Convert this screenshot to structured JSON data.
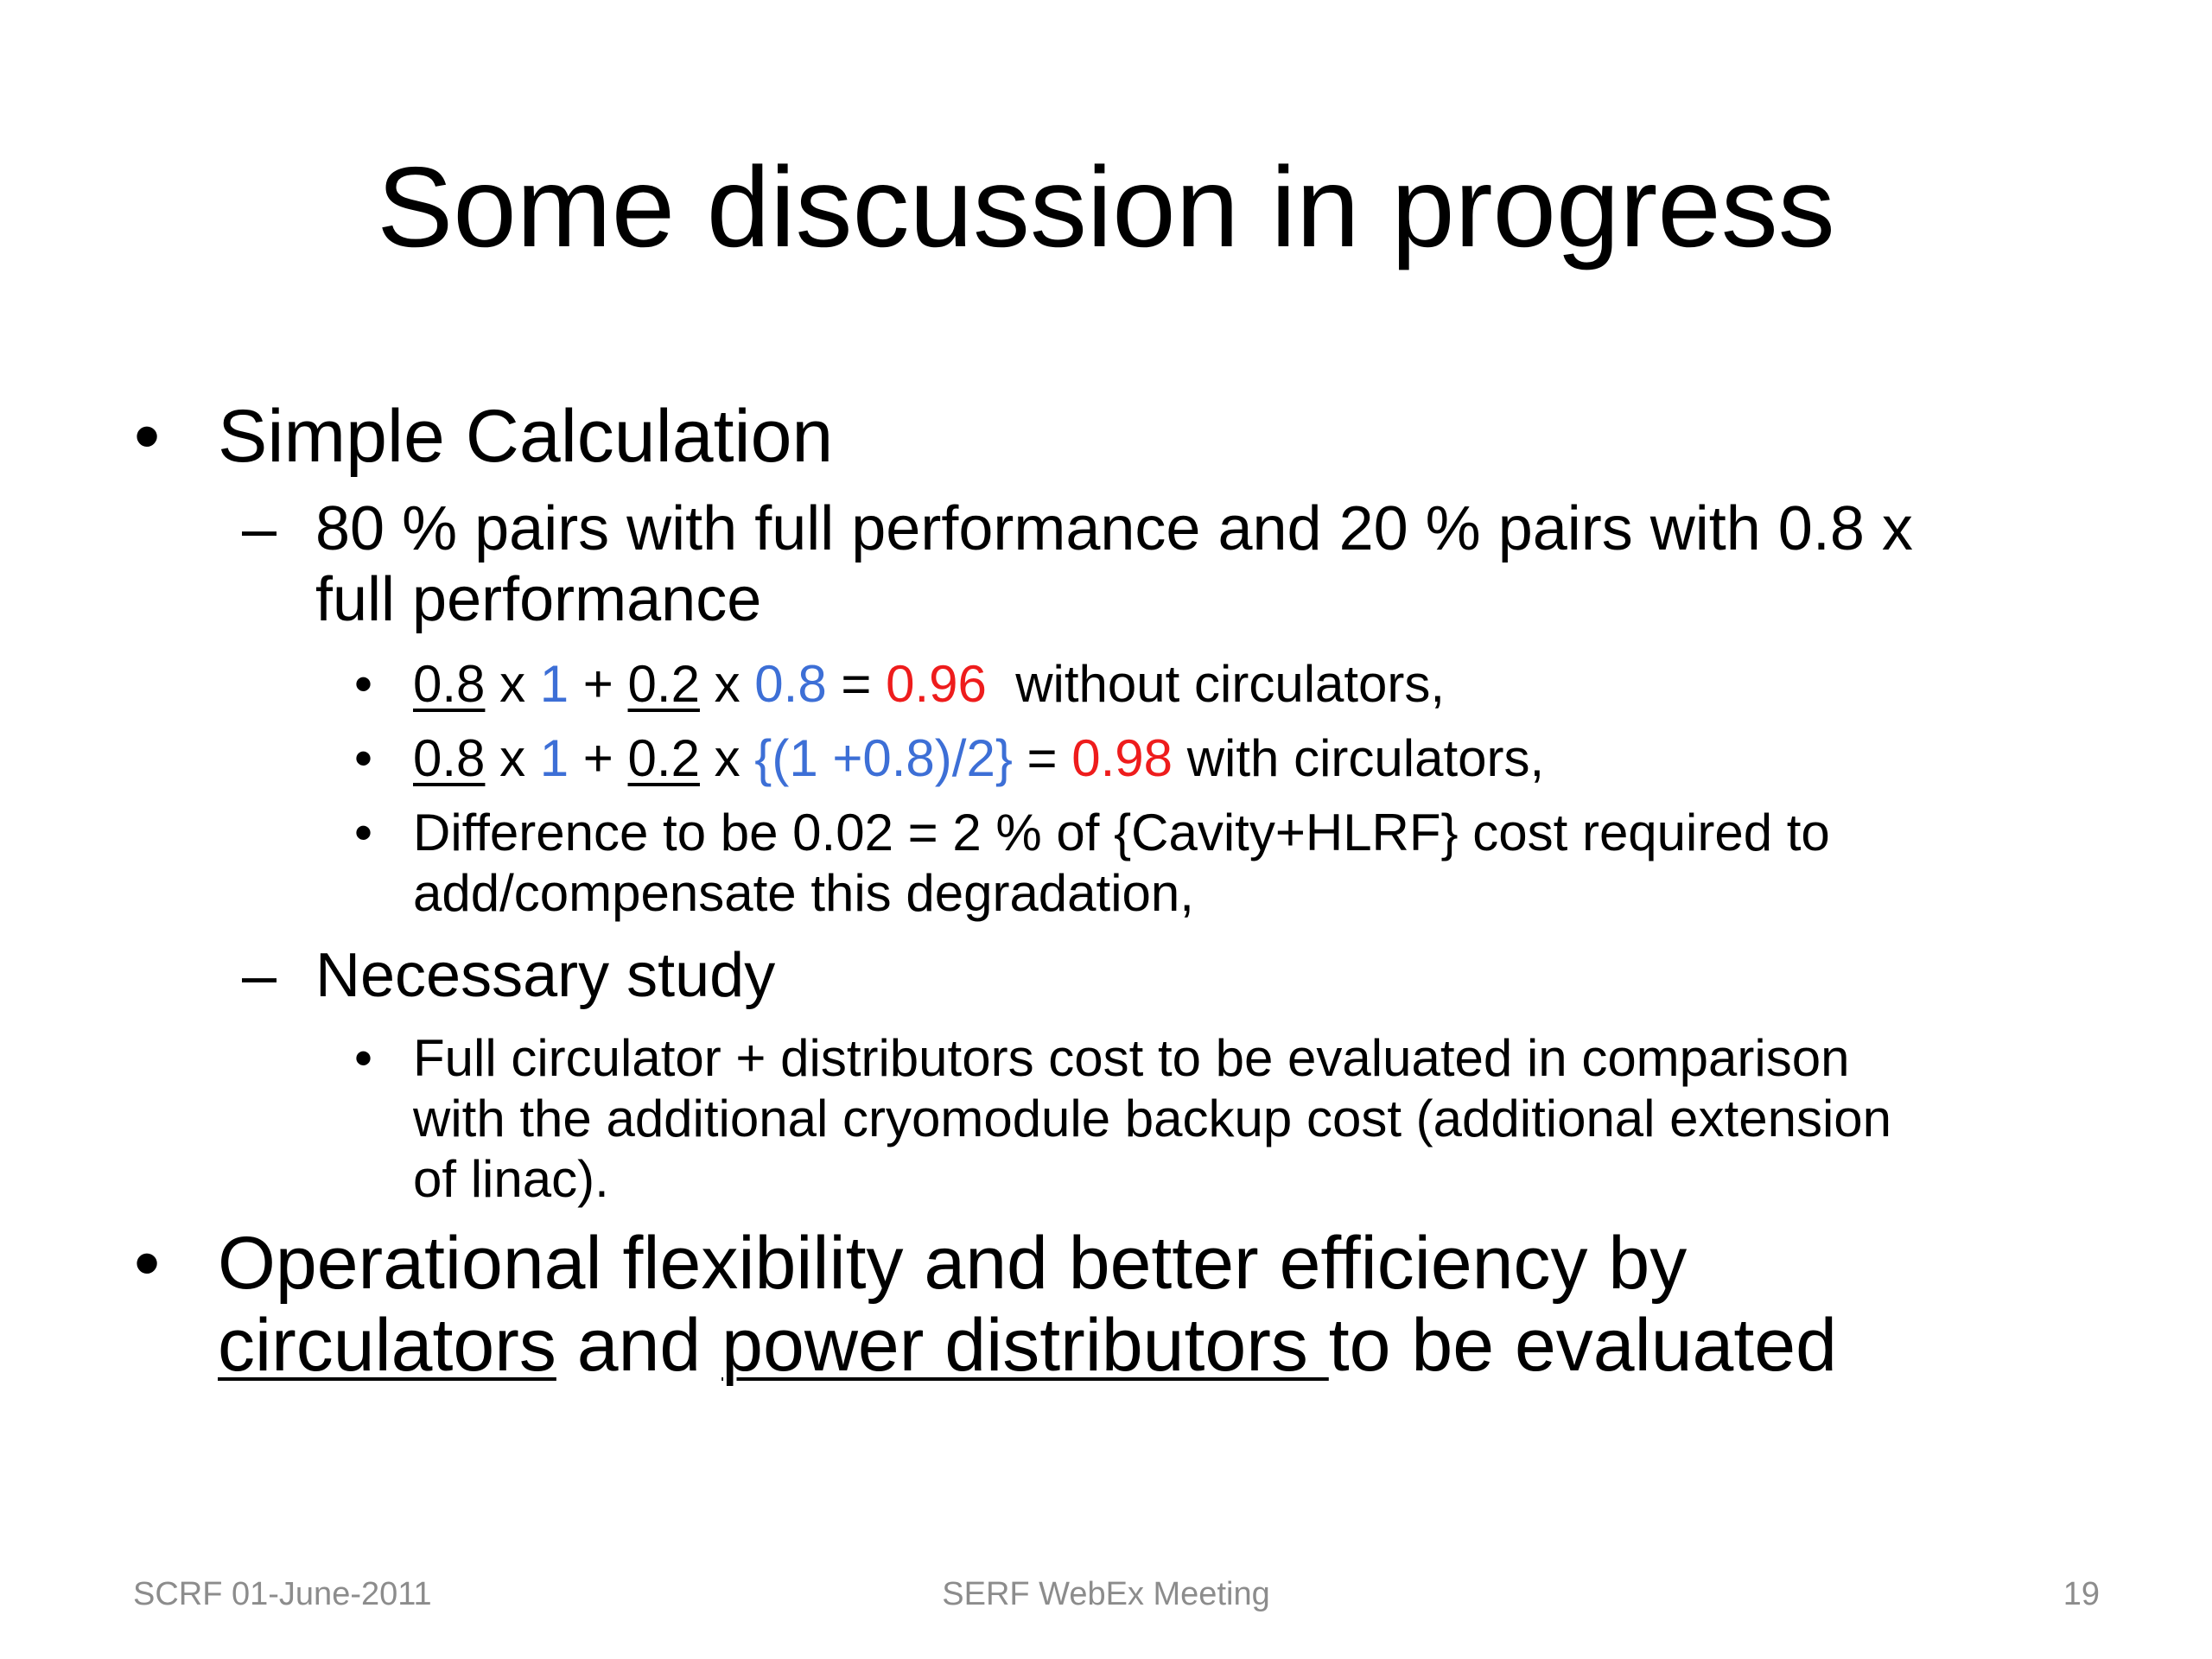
{
  "title": "Some discussion in progress",
  "bullets": {
    "b1": "Simple Calculation",
    "b1_sub1_line1": "80 % pairs with full performance and 20 % pairs with 0.8 x",
    "b1_sub1_line2": "full performance",
    "calc1": {
      "t1": "0.8",
      "t2": " x ",
      "t3": "1",
      "t4": " + ",
      "t5": "0.2",
      "t6": " x ",
      "t7": "0.8",
      "t8": " = ",
      "t9": "0.96",
      "t10": "  without circulators,"
    },
    "calc2": {
      "t1": "0.8",
      "t2": " x ",
      "t3": "1",
      "t4": " + ",
      "t5": "0.2",
      "t6": " x ",
      "t7": "{(1 +0.8)/2}",
      "t8": " = ",
      "t9": "0.98",
      "t10": " with circulators,"
    },
    "calc3_line1": "Difference to be 0.02 = 2 % of {Cavity+HLRF} cost required to",
    "calc3_line2": "add/compensate this degradation,",
    "b1_sub2": "Necessary study",
    "study_line1": "Full circulator + distributors cost to be evaluated in comparison",
    "study_line2": "with the additional cryomodule backup cost (additional extension",
    "study_line3": "of linac).",
    "b2_line1": "Operational flexibility and better efficiency by",
    "b2_circulators": "circulators",
    "b2_and": " and ",
    "b2_power": "power distributors ",
    "b2_rest": "to be evaluated"
  },
  "symbols": {
    "bullet": "•",
    "dash": "–"
  },
  "footer": {
    "left": "SCRF 01-June-2011",
    "center": "SERF WebEx Meeting",
    "right": "19"
  },
  "colors": {
    "blue": "#3d6fd6",
    "red": "#ee1c1c",
    "footer": "#8c8c8c"
  }
}
